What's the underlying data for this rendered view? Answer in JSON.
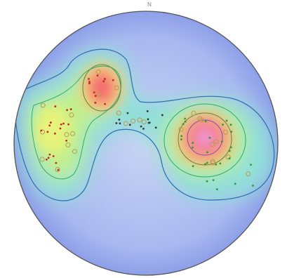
{
  "north_label": "N"
}
